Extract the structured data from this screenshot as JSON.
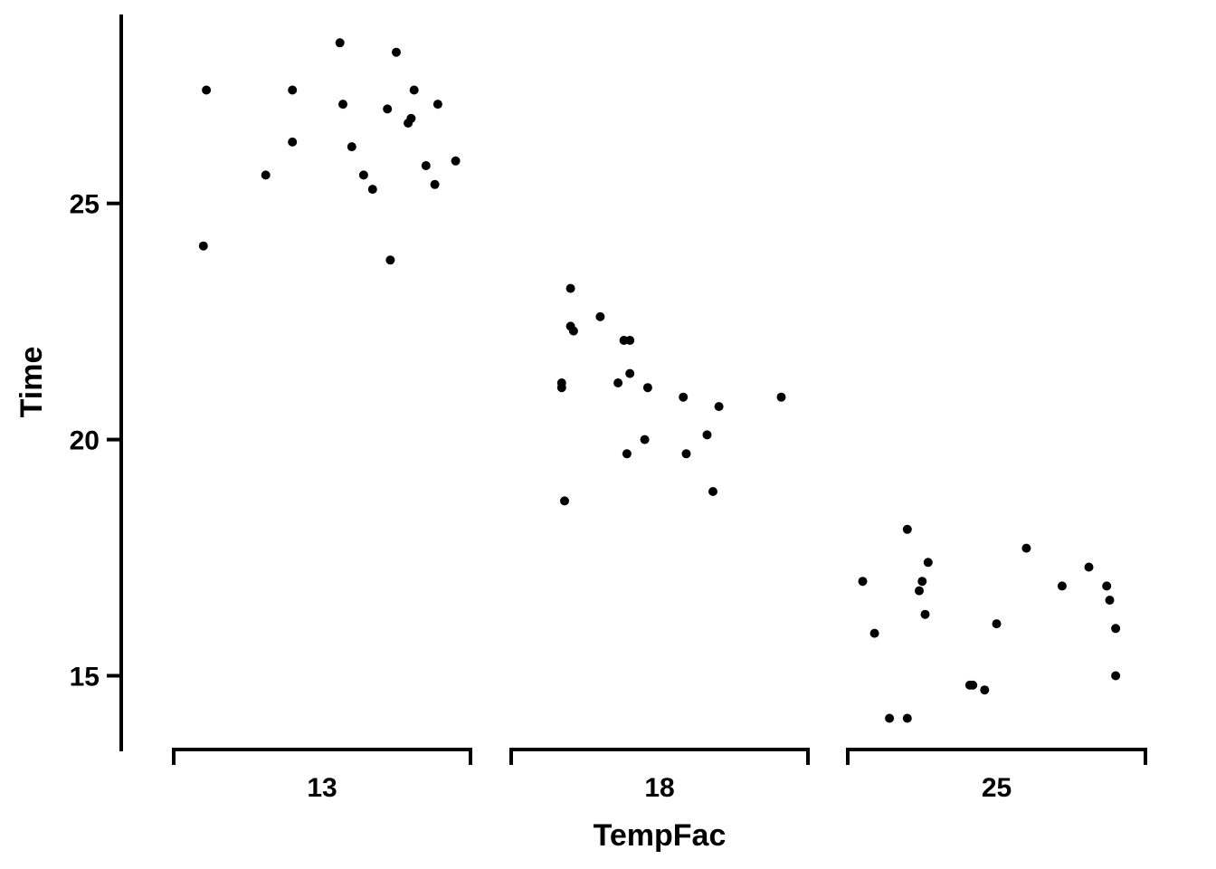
{
  "chart_data": {
    "type": "scatter",
    "xlabel": "TempFac",
    "ylabel": "Time",
    "ylim": [
      13.4,
      29.0
    ],
    "yticks": [
      15,
      20,
      25
    ],
    "grid": false,
    "legend": "none",
    "point_color": "#000000",
    "categories": [
      "13",
      "18",
      "25"
    ],
    "groups": [
      {
        "category": "13",
        "points": [
          {
            "jitter": 0.11,
            "y": 27.4
          },
          {
            "jitter": 0.1,
            "y": 24.1
          },
          {
            "jitter": 0.31,
            "y": 25.6
          },
          {
            "jitter": 0.4,
            "y": 27.4
          },
          {
            "jitter": 0.4,
            "y": 26.3
          },
          {
            "jitter": 0.56,
            "y": 28.4
          },
          {
            "jitter": 0.57,
            "y": 27.1
          },
          {
            "jitter": 0.6,
            "y": 26.2
          },
          {
            "jitter": 0.64,
            "y": 25.6
          },
          {
            "jitter": 0.67,
            "y": 25.3
          },
          {
            "jitter": 0.72,
            "y": 27.0
          },
          {
            "jitter": 0.73,
            "y": 23.8
          },
          {
            "jitter": 0.75,
            "y": 28.2
          },
          {
            "jitter": 0.79,
            "y": 26.7
          },
          {
            "jitter": 0.8,
            "y": 26.8
          },
          {
            "jitter": 0.81,
            "y": 27.4
          },
          {
            "jitter": 0.85,
            "y": 25.8
          },
          {
            "jitter": 0.88,
            "y": 25.4
          },
          {
            "jitter": 0.89,
            "y": 27.1
          },
          {
            "jitter": 0.95,
            "y": 25.9
          }
        ]
      },
      {
        "category": "18",
        "points": [
          {
            "jitter": 0.17,
            "y": 21.2
          },
          {
            "jitter": 0.17,
            "y": 21.1
          },
          {
            "jitter": 0.18,
            "y": 18.7
          },
          {
            "jitter": 0.2,
            "y": 23.2
          },
          {
            "jitter": 0.2,
            "y": 22.4
          },
          {
            "jitter": 0.21,
            "y": 22.3
          },
          {
            "jitter": 0.3,
            "y": 22.6
          },
          {
            "jitter": 0.36,
            "y": 21.2
          },
          {
            "jitter": 0.38,
            "y": 22.1
          },
          {
            "jitter": 0.39,
            "y": 19.7
          },
          {
            "jitter": 0.4,
            "y": 21.4
          },
          {
            "jitter": 0.4,
            "y": 22.1
          },
          {
            "jitter": 0.45,
            "y": 20.0
          },
          {
            "jitter": 0.46,
            "y": 21.1
          },
          {
            "jitter": 0.58,
            "y": 20.9
          },
          {
            "jitter": 0.59,
            "y": 19.7
          },
          {
            "jitter": 0.66,
            "y": 20.1
          },
          {
            "jitter": 0.68,
            "y": 18.9
          },
          {
            "jitter": 0.7,
            "y": 20.7
          },
          {
            "jitter": 0.91,
            "y": 20.9
          }
        ]
      },
      {
        "category": "25",
        "points": [
          {
            "jitter": 0.05,
            "y": 17.0
          },
          {
            "jitter": 0.09,
            "y": 15.9
          },
          {
            "jitter": 0.14,
            "y": 14.1
          },
          {
            "jitter": 0.2,
            "y": 18.1
          },
          {
            "jitter": 0.2,
            "y": 14.1
          },
          {
            "jitter": 0.24,
            "y": 16.8
          },
          {
            "jitter": 0.25,
            "y": 17.0
          },
          {
            "jitter": 0.26,
            "y": 16.3
          },
          {
            "jitter": 0.27,
            "y": 17.4
          },
          {
            "jitter": 0.41,
            "y": 14.8
          },
          {
            "jitter": 0.42,
            "y": 14.8
          },
          {
            "jitter": 0.46,
            "y": 14.7
          },
          {
            "jitter": 0.5,
            "y": 16.1
          },
          {
            "jitter": 0.6,
            "y": 17.7
          },
          {
            "jitter": 0.72,
            "y": 16.9
          },
          {
            "jitter": 0.81,
            "y": 17.3
          },
          {
            "jitter": 0.87,
            "y": 16.9
          },
          {
            "jitter": 0.88,
            "y": 16.6
          },
          {
            "jitter": 0.9,
            "y": 16.0
          },
          {
            "jitter": 0.9,
            "y": 15.0
          }
        ]
      }
    ]
  }
}
